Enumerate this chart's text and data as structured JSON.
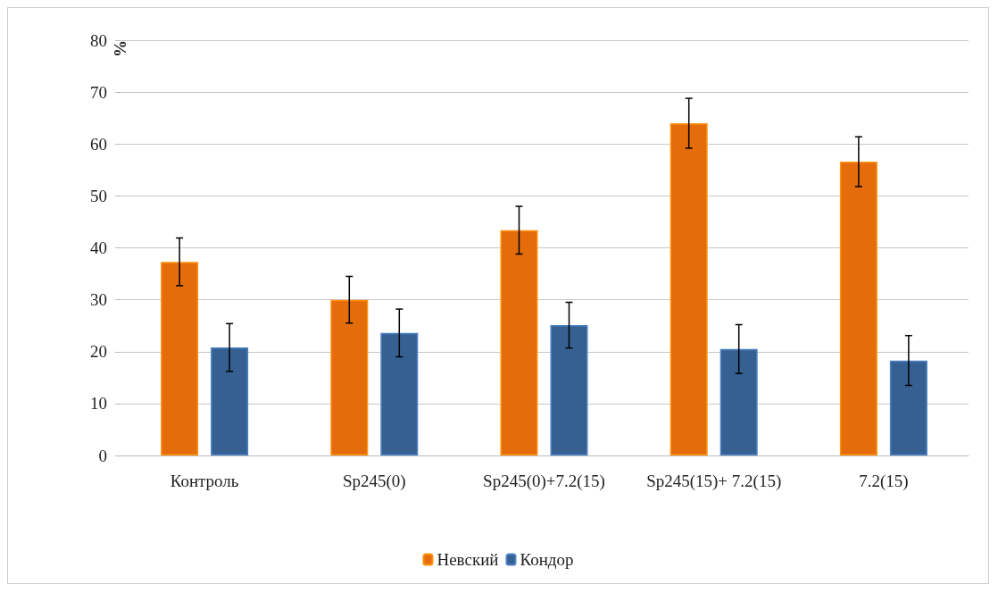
{
  "chart_data": {
    "type": "bar",
    "ylabel": "%",
    "categories": [
      "Контроль",
      "Sp245(0)",
      "Sp245(0)+7.2(15)",
      "Sp245(15)+ 7.2(15)",
      "7.2(15)"
    ],
    "series": [
      {
        "name": "Невский",
        "color": "#e46c0a",
        "values": [
          37.3,
          30.0,
          43.4,
          64.0,
          56.6
        ],
        "errors": [
          4.6,
          4.5,
          4.6,
          4.8,
          4.8
        ]
      },
      {
        "name": "Кондор",
        "color": "#376092",
        "values": [
          20.8,
          23.6,
          25.1,
          20.5,
          18.3
        ],
        "errors": [
          4.6,
          4.6,
          4.4,
          4.7,
          4.8
        ]
      }
    ],
    "ylim": [
      0,
      80
    ],
    "yticks": [
      0,
      10,
      20,
      30,
      40,
      50,
      60,
      70,
      80
    ],
    "grid": "y",
    "legend": "bottom"
  }
}
